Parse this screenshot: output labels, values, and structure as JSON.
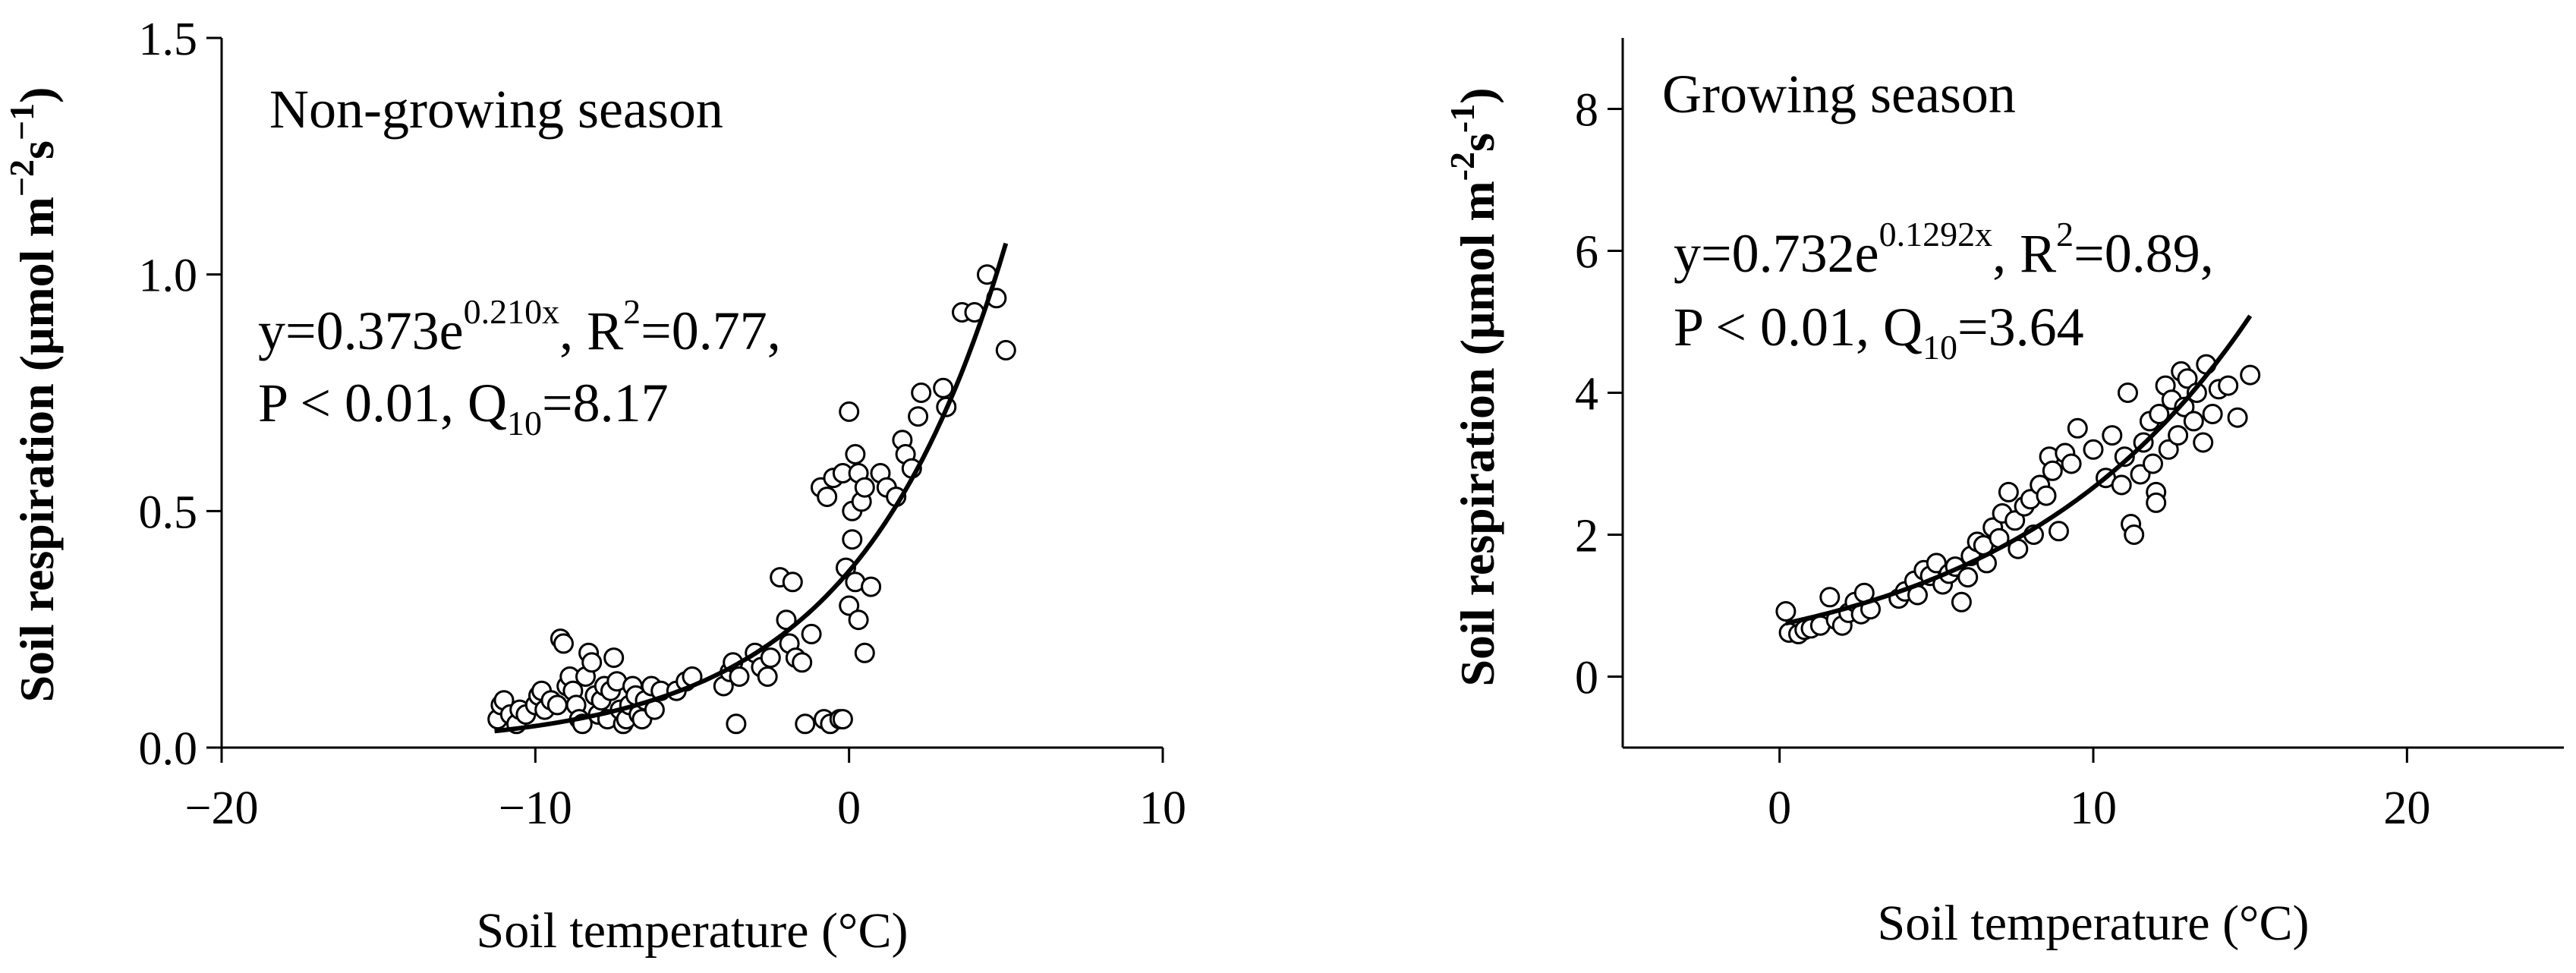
{
  "chart_data": [
    {
      "type": "scatter",
      "title": "Non-growing season",
      "xlabel": "Soil temperature (°C)",
      "ylabel": "Soil respiration (μmol m",
      "ylabel_sup1": "−2",
      "ylabel_s": "s",
      "ylabel_sup2": "−1",
      "ylabel_close": ")",
      "xlim": [
        -20,
        10
      ],
      "ylim": [
        0,
        1.5
      ],
      "xticks": [
        -20,
        -10,
        0,
        10
      ],
      "xtick_labels": [
        "−20",
        "−10",
        "0",
        "10"
      ],
      "yticks": [
        0,
        0.5,
        1.0,
        1.5
      ],
      "ytick_labels": [
        "0.0",
        "0.5",
        "1.0",
        "1.5"
      ],
      "fit": {
        "a": 0.373,
        "b": 0.21,
        "x_range": [
          -11.3,
          5.0
        ]
      },
      "annotation": {
        "line1_prefix": "y=0.373e",
        "line1_exp": "0.210x",
        "line1_mid": ",  R",
        "line1_r_sup": "2",
        "line1_suffix": "=0.77,",
        "line2_prefix": "P < 0.01,  Q",
        "line2_sub": "10",
        "line2_suffix": "=8.17"
      },
      "points": [
        [
          -11.2,
          0.06
        ],
        [
          -11.1,
          0.09
        ],
        [
          -11.0,
          0.1
        ],
        [
          -10.8,
          0.07
        ],
        [
          -10.6,
          0.05
        ],
        [
          -10.5,
          0.08
        ],
        [
          -10.3,
          0.07
        ],
        [
          -10.0,
          0.09
        ],
        [
          -9.9,
          0.11
        ],
        [
          -9.8,
          0.12
        ],
        [
          -9.7,
          0.08
        ],
        [
          -9.5,
          0.1
        ],
        [
          -9.3,
          0.09
        ],
        [
          -9.2,
          0.23
        ],
        [
          -9.1,
          0.22
        ],
        [
          -9.0,
          0.13
        ],
        [
          -8.9,
          0.15
        ],
        [
          -8.8,
          0.12
        ],
        [
          -8.7,
          0.09
        ],
        [
          -8.6,
          0.06
        ],
        [
          -8.5,
          0.05
        ],
        [
          -8.4,
          0.15
        ],
        [
          -8.3,
          0.2
        ],
        [
          -8.2,
          0.18
        ],
        [
          -8.1,
          0.11
        ],
        [
          -8.0,
          0.07
        ],
        [
          -7.9,
          0.1
        ],
        [
          -7.8,
          0.13
        ],
        [
          -7.7,
          0.06
        ],
        [
          -7.6,
          0.12
        ],
        [
          -7.5,
          0.19
        ],
        [
          -7.4,
          0.14
        ],
        [
          -7.3,
          0.08
        ],
        [
          -7.2,
          0.05
        ],
        [
          -7.1,
          0.06
        ],
        [
          -7.0,
          0.09
        ],
        [
          -6.9,
          0.13
        ],
        [
          -6.8,
          0.11
        ],
        [
          -6.7,
          0.07
        ],
        [
          -6.6,
          0.06
        ],
        [
          -6.5,
          0.1
        ],
        [
          -6.3,
          0.13
        ],
        [
          -6.2,
          0.08
        ],
        [
          -6.0,
          0.12
        ],
        [
          -5.5,
          0.12
        ],
        [
          -5.2,
          0.14
        ],
        [
          -5.0,
          0.15
        ],
        [
          -4.0,
          0.13
        ],
        [
          -3.8,
          0.16
        ],
        [
          -3.7,
          0.18
        ],
        [
          -3.6,
          0.05
        ],
        [
          -3.5,
          0.15
        ],
        [
          -3.0,
          0.2
        ],
        [
          -2.8,
          0.17
        ],
        [
          -2.6,
          0.15
        ],
        [
          -2.5,
          0.19
        ],
        [
          -2.2,
          0.36
        ],
        [
          -2.0,
          0.27
        ],
        [
          -1.9,
          0.22
        ],
        [
          -1.8,
          0.35
        ],
        [
          -1.7,
          0.19
        ],
        [
          -1.5,
          0.18
        ],
        [
          -1.4,
          0.05
        ],
        [
          -1.2,
          0.24
        ],
        [
          -0.9,
          0.55
        ],
        [
          -0.8,
          0.06
        ],
        [
          -0.7,
          0.53
        ],
        [
          -0.6,
          0.05
        ],
        [
          -0.5,
          0.57
        ],
        [
          -0.3,
          0.06
        ],
        [
          -0.2,
          0.58
        ],
        [
          -0.2,
          0.06
        ],
        [
          -0.1,
          0.38
        ],
        [
          0.0,
          0.71
        ],
        [
          0.0,
          0.3
        ],
        [
          0.1,
          0.5
        ],
        [
          0.1,
          0.44
        ],
        [
          0.2,
          0.62
        ],
        [
          0.2,
          0.35
        ],
        [
          0.3,
          0.27
        ],
        [
          0.3,
          0.58
        ],
        [
          0.4,
          0.52
        ],
        [
          0.5,
          0.55
        ],
        [
          0.5,
          0.2
        ],
        [
          0.7,
          0.34
        ],
        [
          1.0,
          0.58
        ],
        [
          1.2,
          0.55
        ],
        [
          1.5,
          0.53
        ],
        [
          1.7,
          0.65
        ],
        [
          1.8,
          0.62
        ],
        [
          2.0,
          0.59
        ],
        [
          2.2,
          0.7
        ],
        [
          2.3,
          0.75
        ],
        [
          3.0,
          0.76
        ],
        [
          3.1,
          0.72
        ],
        [
          3.6,
          0.92
        ],
        [
          4.0,
          0.92
        ],
        [
          4.4,
          1.0
        ],
        [
          4.7,
          0.95
        ],
        [
          5.0,
          0.84
        ]
      ]
    },
    {
      "type": "scatter",
      "title": "Growing season",
      "xlabel": "Soil temperature (°C)",
      "ylabel": "Soil respiration (μmol m",
      "ylabel_sup1": "-2",
      "ylabel_s": "s",
      "ylabel_sup2": "-1",
      "ylabel_close": ")",
      "xlim": [
        -5,
        25
      ],
      "ylim": [
        -1,
        9
      ],
      "xticks": [
        0,
        10,
        20
      ],
      "xtick_labels": [
        "0",
        "10",
        "20"
      ],
      "yticks": [
        0,
        2,
        4,
        6,
        8
      ],
      "ytick_labels": [
        "0",
        "2",
        "4",
        "6",
        "8"
      ],
      "fit": {
        "a": 0.732,
        "b": 0.1292,
        "x_range": [
          0.2,
          15.0
        ]
      },
      "annotation": {
        "line1_prefix": "y=0.732e",
        "line1_exp": "0.1292x",
        "line1_mid": ",  R",
        "line1_r_sup": "2",
        "line1_suffix": "=0.89,",
        "line2_prefix": "P < 0.01,  Q",
        "line2_sub": "10",
        "line2_suffix": "=3.64"
      },
      "points": [
        [
          0.2,
          0.92
        ],
        [
          0.3,
          0.62
        ],
        [
          0.6,
          0.6
        ],
        [
          0.8,
          0.66
        ],
        [
          1.0,
          0.68
        ],
        [
          1.3,
          0.72
        ],
        [
          1.6,
          1.12
        ],
        [
          1.8,
          0.8
        ],
        [
          2.0,
          0.72
        ],
        [
          2.2,
          0.9
        ],
        [
          2.4,
          1.05
        ],
        [
          2.6,
          0.88
        ],
        [
          2.7,
          1.18
        ],
        [
          2.9,
          0.95
        ],
        [
          3.8,
          1.1
        ],
        [
          4.0,
          1.2
        ],
        [
          4.3,
          1.35
        ],
        [
          4.4,
          1.15
        ],
        [
          4.6,
          1.5
        ],
        [
          4.8,
          1.42
        ],
        [
          5.0,
          1.6
        ],
        [
          5.2,
          1.3
        ],
        [
          5.4,
          1.45
        ],
        [
          5.6,
          1.55
        ],
        [
          5.8,
          1.05
        ],
        [
          6.0,
          1.4
        ],
        [
          6.1,
          1.7
        ],
        [
          6.3,
          1.9
        ],
        [
          6.5,
          1.85
        ],
        [
          6.6,
          1.6
        ],
        [
          6.8,
          2.1
        ],
        [
          7.0,
          1.95
        ],
        [
          7.1,
          2.3
        ],
        [
          7.3,
          2.6
        ],
        [
          7.5,
          2.2
        ],
        [
          7.6,
          1.8
        ],
        [
          7.8,
          2.4
        ],
        [
          8.0,
          2.5
        ],
        [
          8.1,
          2.0
        ],
        [
          8.3,
          2.7
        ],
        [
          8.5,
          2.55
        ],
        [
          8.6,
          3.1
        ],
        [
          8.7,
          2.9
        ],
        [
          8.9,
          2.05
        ],
        [
          9.1,
          3.15
        ],
        [
          9.3,
          3.0
        ],
        [
          9.5,
          3.5
        ],
        [
          10.0,
          3.2
        ],
        [
          10.4,
          2.8
        ],
        [
          10.6,
          3.4
        ],
        [
          10.9,
          2.7
        ],
        [
          11.0,
          3.1
        ],
        [
          11.1,
          4.0
        ],
        [
          11.2,
          2.15
        ],
        [
          11.3,
          2.0
        ],
        [
          11.5,
          2.85
        ],
        [
          11.6,
          3.3
        ],
        [
          11.8,
          3.6
        ],
        [
          11.9,
          3.0
        ],
        [
          12.0,
          2.6
        ],
        [
          12.0,
          2.45
        ],
        [
          12.1,
          3.7
        ],
        [
          12.3,
          4.1
        ],
        [
          12.4,
          3.2
        ],
        [
          12.5,
          3.9
        ],
        [
          12.7,
          3.4
        ],
        [
          12.8,
          4.3
        ],
        [
          12.9,
          3.8
        ],
        [
          13.0,
          4.2
        ],
        [
          13.2,
          3.6
        ],
        [
          13.3,
          4.0
        ],
        [
          13.5,
          3.3
        ],
        [
          13.6,
          4.4
        ],
        [
          13.8,
          3.7
        ],
        [
          14.0,
          4.05
        ],
        [
          14.3,
          4.1
        ],
        [
          14.6,
          3.65
        ],
        [
          15.0,
          4.25
        ]
      ]
    }
  ]
}
